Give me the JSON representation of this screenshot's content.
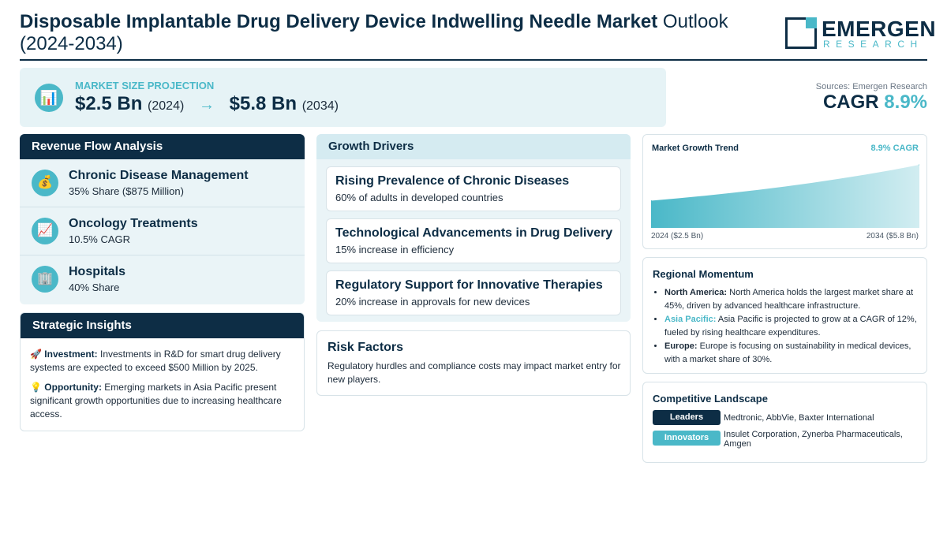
{
  "header": {
    "title_bold": "Disposable Implantable Drug Delivery Device Indwelling Needle Market",
    "title_rest": " Outlook (2024-2034)",
    "logo_name": "EMERGEN",
    "logo_sub": "RESEARCH"
  },
  "projection": {
    "icon": "bar-chart-icon",
    "label": "MARKET SIZE PROJECTION",
    "start_value": "$2.5 Bn",
    "start_year": "(2024)",
    "arrow": "→",
    "end_value": "$5.8 Bn",
    "end_year": "(2034)"
  },
  "sources": "Sources: Emergen Research",
  "cagr": {
    "label": "CAGR ",
    "value": "8.9%"
  },
  "revenue_flow": {
    "heading": "Revenue Flow Analysis",
    "items": [
      {
        "icon": "💰",
        "title": "Chronic Disease Management",
        "sub": "35% Share ($875 Million)"
      },
      {
        "icon": "📈",
        "title": "Oncology Treatments",
        "sub": "10.5% CAGR"
      },
      {
        "icon": "🏢",
        "title": "Hospitals",
        "sub": "40% Share"
      }
    ]
  },
  "insights": {
    "heading": "Strategic Insights",
    "items": [
      {
        "icon": "🚀",
        "label": "Investment:",
        "text": " Investments in R&D for smart drug delivery systems are expected to exceed $500 Million by 2025."
      },
      {
        "icon": "💡",
        "label": "Opportunity:",
        "text": " Emerging markets in Asia Pacific present significant growth opportunities due to increasing healthcare access."
      }
    ]
  },
  "drivers": {
    "heading": "Growth Drivers",
    "items": [
      {
        "title": "Rising Prevalence of Chronic Diseases",
        "sub": "60% of adults in developed countries"
      },
      {
        "title": "Technological Advancements in Drug Delivery",
        "sub": "15% increase in efficiency"
      },
      {
        "title": "Regulatory Support for Innovative Therapies",
        "sub": "20% increase in approvals for new devices"
      }
    ]
  },
  "risk": {
    "heading": "Risk Factors",
    "text": "Regulatory hurdles and compliance costs may impact market entry for new players."
  },
  "trend": {
    "title": "Market Growth Trend",
    "cagr": "8.9% CAGR",
    "left_label": "2024 ($2.5 Bn)",
    "right_label": "2034 ($5.8 Bn)",
    "fill_color": "#4ab8c8"
  },
  "chart_data": {
    "type": "area",
    "x": [
      2024,
      2034
    ],
    "values": [
      2.5,
      5.8
    ],
    "title": "Market Growth Trend",
    "xlabel": "",
    "ylabel": "",
    "grid": false
  },
  "regional": {
    "heading": "Regional Momentum",
    "items": [
      {
        "label": "North America:",
        "text": " North America holds the largest market share at 45%, driven by advanced healthcare infrastructure.",
        "accent": false
      },
      {
        "label": "Asia Pacific:",
        "text": " Asia Pacific is projected to grow at a CAGR of 12%, fueled by rising healthcare expenditures.",
        "accent": true
      },
      {
        "label": "Europe:",
        "text": " Europe is focusing on sustainability in medical devices, with a market share of 30%.",
        "accent": false
      }
    ]
  },
  "competitive": {
    "heading": "Competitive Landscape",
    "leaders_label": "Leaders",
    "leaders": "Medtronic, AbbVie, Baxter International",
    "innovators_label": "Innovators",
    "innovators": "Insulet Corporation, Zynerba Pharmaceuticals, Amgen"
  },
  "colors": {
    "navy": "#0d2d45",
    "teal": "#4ab8c8",
    "light": "#eaf4f7"
  }
}
